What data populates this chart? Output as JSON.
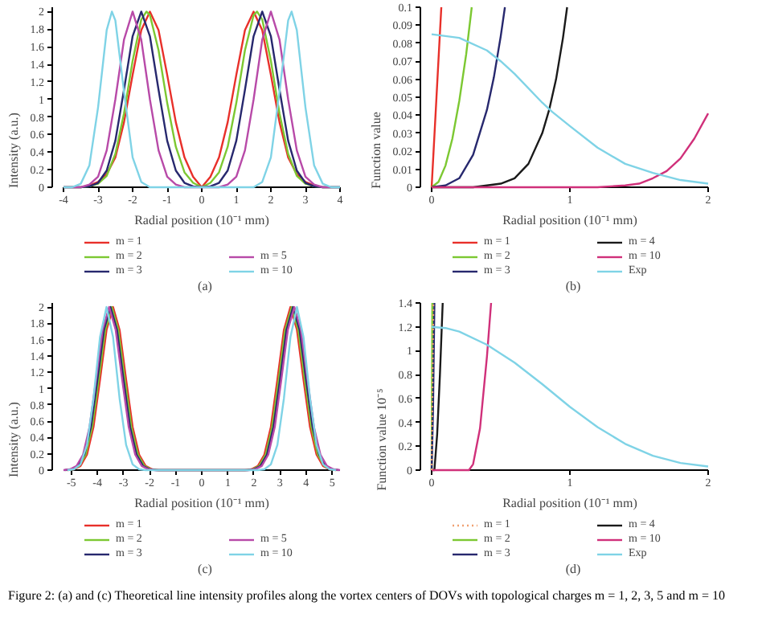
{
  "chart_data": [
    {
      "type": "line",
      "title": "(a)",
      "xlabel": "Radial position (10⁻¹ mm)",
      "ylabel": "Intensity (a.u.)",
      "xlim": [
        -4,
        4
      ],
      "ylim": [
        0,
        2.05
      ],
      "xticks": [
        -4,
        -3,
        -2,
        -1,
        0,
        1,
        2,
        3,
        4
      ],
      "yticks": [
        0,
        0.2,
        0.4,
        0.6,
        0.8,
        1,
        1.2,
        1.4,
        1.6,
        1.8,
        2
      ],
      "legend": "bottom",
      "grid": false,
      "series": [
        {
          "name": "m = 1",
          "color": "#e8302a",
          "x": [
            -3.25,
            -3,
            -2.75,
            -2.5,
            -2.25,
            -2,
            -1.75,
            -1.5,
            -1.25,
            -1,
            -0.75,
            -0.5,
            -0.25,
            0,
            0.25,
            0.5,
            0.75,
            1,
            1.25,
            1.5,
            1.75,
            2,
            2.25,
            2.5,
            2.75,
            3,
            3.25
          ],
          "values": [
            0.02,
            0.06,
            0.15,
            0.34,
            0.74,
            1.28,
            1.79,
            2,
            1.79,
            1.28,
            0.74,
            0.34,
            0.12,
            0,
            0.12,
            0.34,
            0.74,
            1.28,
            1.79,
            2,
            1.79,
            1.28,
            0.74,
            0.34,
            0.15,
            0.06,
            0.02
          ]
        },
        {
          "name": "m = 2",
          "color": "#7cc832",
          "x": [
            -4,
            -3.5,
            -3.25,
            -3,
            -2.75,
            -2.5,
            -2.25,
            -2,
            -1.75,
            -1.6,
            -1.5,
            -1.25,
            -1,
            -0.75,
            -0.5,
            -0.25,
            0,
            0.25,
            0.5,
            0.75,
            1,
            1.25,
            1.5,
            1.6,
            1.75,
            2,
            2.25,
            2.5,
            2.75,
            3,
            3.25,
            3.5,
            4
          ],
          "values": [
            0,
            0,
            0.01,
            0.04,
            0.13,
            0.38,
            0.84,
            1.44,
            1.91,
            2,
            1.96,
            1.56,
            0.96,
            0.46,
            0.17,
            0.05,
            0,
            0.05,
            0.17,
            0.46,
            0.96,
            1.56,
            1.96,
            2,
            1.91,
            1.44,
            0.84,
            0.38,
            0.13,
            0.04,
            0.01,
            0,
            0
          ]
        },
        {
          "name": "m = 3",
          "color": "#27286e",
          "x": [
            -4,
            -3.5,
            -3.25,
            -3,
            -2.75,
            -2.5,
            -2.25,
            -2,
            -1.75,
            -1.5,
            -1.25,
            -1,
            -0.75,
            -0.5,
            -0.25,
            0,
            0.25,
            0.5,
            0.75,
            1,
            1.25,
            1.5,
            1.75,
            2,
            2.25,
            2.5,
            2.75,
            3,
            3.25,
            3.5,
            4
          ],
          "values": [
            0,
            0,
            0.01,
            0.05,
            0.19,
            0.53,
            1.11,
            1.72,
            2,
            1.72,
            1.11,
            0.53,
            0.19,
            0.05,
            0.01,
            0,
            0.01,
            0.05,
            0.19,
            0.53,
            1.11,
            1.72,
            2,
            1.72,
            1.11,
            0.53,
            0.19,
            0.05,
            0.01,
            0,
            0
          ]
        },
        {
          "name": "m = 5",
          "color": "#b84aa8",
          "x": [
            -4,
            -3.5,
            -3.25,
            -3,
            -2.75,
            -2.5,
            -2.25,
            -2,
            -1.75,
            -1.5,
            -1.25,
            -1,
            -0.75,
            -0.5,
            0,
            0.5,
            0.75,
            1,
            1.25,
            1.5,
            1.75,
            2,
            2.25,
            2.5,
            2.75,
            3,
            3.25,
            3.5,
            4
          ],
          "values": [
            0,
            0,
            0.03,
            0.12,
            0.42,
            1.0,
            1.68,
            2,
            1.68,
            1.0,
            0.42,
            0.12,
            0.03,
            0,
            0,
            0,
            0.03,
            0.12,
            0.42,
            1.0,
            1.68,
            2,
            1.68,
            1.0,
            0.42,
            0.12,
            0.03,
            0,
            0
          ]
        },
        {
          "name": "m = 10",
          "color": "#7fd3e6",
          "x": [
            -4,
            -3.75,
            -3.5,
            -3.25,
            -3,
            -2.75,
            -2.6,
            -2.5,
            -2.25,
            -2,
            -1.75,
            -1.5,
            0,
            1.5,
            1.75,
            2,
            2.25,
            2.5,
            2.6,
            2.75,
            3,
            3.25,
            3.5,
            3.75,
            4
          ],
          "values": [
            0,
            0,
            0.04,
            0.25,
            0.91,
            1.79,
            2,
            1.9,
            1.09,
            0.34,
            0.06,
            0,
            0,
            0,
            0.06,
            0.34,
            1.09,
            1.9,
            2,
            1.79,
            0.91,
            0.25,
            0.04,
            0,
            0
          ]
        }
      ]
    },
    {
      "type": "line",
      "title": "(b)",
      "xlabel": "Radial position (10⁻¹ mm)",
      "ylabel": "Function value",
      "xlim": [
        0,
        2
      ],
      "ylim": [
        0,
        0.1
      ],
      "xticks": [
        0,
        1,
        2
      ],
      "yticks": [
        0,
        0.01,
        0.02,
        0.03,
        0.04,
        0.05,
        0.06,
        0.07,
        0.08,
        0.09,
        0.1
      ],
      "legend": "bottom",
      "grid": false,
      "series": [
        {
          "name": "m = 1",
          "color": "#e8302a",
          "x": [
            0,
            0.035,
            0.07
          ],
          "values": [
            0,
            0.05,
            0.1
          ]
        },
        {
          "name": "m = 2",
          "color": "#7cc832",
          "x": [
            0,
            0.05,
            0.1,
            0.15,
            0.2,
            0.25,
            0.29
          ],
          "values": [
            0,
            0.003,
            0.012,
            0.027,
            0.048,
            0.074,
            0.1
          ]
        },
        {
          "name": "m = 3",
          "color": "#27286e",
          "x": [
            0,
            0.1,
            0.2,
            0.3,
            0.4,
            0.45,
            0.5,
            0.53
          ],
          "values": [
            0,
            0.001,
            0.005,
            0.018,
            0.043,
            0.061,
            0.084,
            0.1
          ]
        },
        {
          "name": "m = 4",
          "color": "#1a1a1a",
          "x": [
            0,
            0.3,
            0.5,
            0.6,
            0.7,
            0.8,
            0.85,
            0.9,
            0.95,
            0.98
          ],
          "values": [
            0,
            0,
            0.002,
            0.005,
            0.013,
            0.03,
            0.043,
            0.06,
            0.083,
            0.1
          ]
        },
        {
          "name": "m = 10",
          "color": "#d0307a",
          "x": [
            0,
            1.2,
            1.4,
            1.5,
            1.6,
            1.7,
            1.8,
            1.9,
            2
          ],
          "values": [
            0,
            0,
            0.001,
            0.002,
            0.005,
            0.009,
            0.016,
            0.027,
            0.041
          ]
        },
        {
          "name": "Exp",
          "color": "#7fd3e6",
          "x": [
            0,
            0.2,
            0.4,
            0.5,
            0.6,
            0.8,
            0.87,
            1,
            1.2,
            1.4,
            1.6,
            1.7,
            1.8,
            2
          ],
          "values": [
            0.085,
            0.083,
            0.076,
            0.07,
            0.063,
            0.047,
            0.042,
            0.034,
            0.022,
            0.013,
            0.008,
            0.006,
            0.004,
            0.002
          ]
        }
      ]
    },
    {
      "type": "line",
      "title": "(c)",
      "xlabel": "Radial position (10⁻¹ mm)",
      "ylabel": "Intensity (a.u.)",
      "xlim": [
        -5.3,
        5.3
      ],
      "ylim": [
        0,
        2.05
      ],
      "xticks": [
        -5,
        -4,
        -3,
        -2,
        -1,
        0,
        1,
        2,
        3,
        4,
        5
      ],
      "yticks": [
        0,
        0.2,
        0.4,
        0.6,
        0.8,
        1,
        1.2,
        1.4,
        1.6,
        1.8,
        2
      ],
      "legend": "bottom",
      "grid": false,
      "annotations": [
        "Figure 2: (a) and (c) Theoretical line intensity profiles along the vortex centers of DOVs with topological charges m = 1, 2, 3, 5 and m = 10"
      ],
      "series": [
        {
          "name": "m = 1",
          "color": "#e8302a",
          "x": [
            -5.15,
            -4.9,
            -4.65,
            -4.4,
            -4.15,
            -3.9,
            -3.65,
            -3.4,
            -3.15,
            -2.9,
            -2.65,
            -2.4,
            -2.15,
            -1.9,
            -1.65,
            0,
            1.65,
            1.9,
            2.15,
            2.4,
            2.65,
            2.9,
            3.15,
            3.4,
            3.65,
            3.9,
            4.15,
            4.4,
            4.65,
            4.9,
            5.15
          ],
          "values": [
            0,
            0.01,
            0.05,
            0.19,
            0.53,
            1.11,
            1.72,
            2,
            1.72,
            1.11,
            0.53,
            0.19,
            0.05,
            0.01,
            0,
            0,
            0,
            0.01,
            0.05,
            0.19,
            0.53,
            1.11,
            1.72,
            2,
            1.72,
            1.11,
            0.53,
            0.19,
            0.05,
            0.01,
            0
          ]
        },
        {
          "name": "m = 2",
          "color": "#7cc832",
          "x": [
            -5.2,
            -4.95,
            -4.7,
            -4.45,
            -4.2,
            -3.95,
            -3.7,
            -3.45,
            -3.2,
            -2.95,
            -2.7,
            -2.45,
            -2.2,
            -1.95,
            -1.7,
            0,
            1.7,
            1.95,
            2.2,
            2.45,
            2.7,
            2.95,
            3.2,
            3.45,
            3.7,
            3.95,
            4.2,
            4.45,
            4.7,
            4.95,
            5.2
          ],
          "values": [
            0,
            0.01,
            0.05,
            0.19,
            0.53,
            1.11,
            1.72,
            2,
            1.72,
            1.11,
            0.53,
            0.19,
            0.05,
            0.01,
            0,
            0,
            0,
            0.01,
            0.05,
            0.19,
            0.53,
            1.11,
            1.72,
            2,
            1.72,
            1.11,
            0.53,
            0.19,
            0.05,
            0.01,
            0
          ]
        },
        {
          "name": "m = 3",
          "color": "#27286e",
          "x": [
            -5.25,
            -5,
            -4.75,
            -4.5,
            -4.25,
            -4,
            -3.75,
            -3.5,
            -3.25,
            -3,
            -2.75,
            -2.5,
            -2.25,
            -2,
            -1.75,
            0,
            1.75,
            2,
            2.25,
            2.5,
            2.75,
            3,
            3.25,
            3.5,
            3.75,
            4,
            4.25,
            4.5,
            4.75,
            5,
            5.25
          ],
          "values": [
            0,
            0.01,
            0.05,
            0.19,
            0.53,
            1.11,
            1.72,
            2,
            1.72,
            1.11,
            0.53,
            0.19,
            0.05,
            0.01,
            0,
            0,
            0,
            0.01,
            0.05,
            0.19,
            0.53,
            1.11,
            1.72,
            2,
            1.72,
            1.11,
            0.53,
            0.19,
            0.05,
            0.01,
            0
          ]
        },
        {
          "name": "m = 5",
          "color": "#b84aa8",
          "x": [
            -5.3,
            -5.05,
            -4.8,
            -4.55,
            -4.3,
            -4.05,
            -3.8,
            -3.55,
            -3.3,
            -3.05,
            -2.8,
            -2.55,
            -2.3,
            -2.05,
            -1.8,
            0,
            1.8,
            2.05,
            2.3,
            2.55,
            2.8,
            3.05,
            3.3,
            3.55,
            3.8,
            4.05,
            4.3,
            4.55,
            4.8,
            5.05,
            5.3
          ],
          "values": [
            0,
            0.01,
            0.05,
            0.19,
            0.53,
            1.11,
            1.72,
            2,
            1.72,
            1.11,
            0.53,
            0.19,
            0.05,
            0.01,
            0,
            0,
            0,
            0.01,
            0.05,
            0.19,
            0.53,
            1.11,
            1.72,
            2,
            1.72,
            1.11,
            0.53,
            0.19,
            0.05,
            0.01,
            0
          ]
        },
        {
          "name": "m = 10",
          "color": "#7fd3e6",
          "x": [
            -5.15,
            -4.9,
            -4.65,
            -4.4,
            -4.15,
            -3.9,
            -3.65,
            -3.4,
            -3.15,
            -2.9,
            -2.65,
            -2.4,
            -2.15,
            0,
            2.15,
            2.4,
            2.65,
            2.9,
            3.15,
            3.4,
            3.65,
            3.9,
            4.15,
            4.4,
            4.65,
            4.9,
            5.15
          ],
          "values": [
            0,
            0.01,
            0.07,
            0.31,
            0.88,
            1.63,
            2,
            1.63,
            0.88,
            0.31,
            0.07,
            0.01,
            0,
            0,
            0,
            0.01,
            0.07,
            0.31,
            0.88,
            1.63,
            2,
            1.63,
            0.88,
            0.31,
            0.07,
            0.01,
            0
          ]
        }
      ]
    },
    {
      "type": "line",
      "title": "(d)",
      "xlabel": "Radial position (10⁻¹ mm)",
      "ylabel": "Function value 10⁻⁵",
      "xlim": [
        0,
        2
      ],
      "ylim": [
        0,
        1.4
      ],
      "xticks": [
        0,
        1,
        2
      ],
      "yticks": [
        0,
        0.2,
        0.4,
        0.6,
        0.8,
        1,
        1.2,
        1.4
      ],
      "legend": "bottom",
      "grid": false,
      "series": [
        {
          "name": "m = 1",
          "color": "#f0a070",
          "line_style": "dotted",
          "x": [
            0,
            0.012
          ],
          "values": [
            0,
            1.4
          ]
        },
        {
          "name": "m = 2",
          "color": "#7cc832",
          "x": [
            0,
            0.005
          ],
          "values": [
            0,
            1.4
          ]
        },
        {
          "name": "m = 3",
          "color": "#27286e",
          "x": [
            0,
            0.01,
            0.02
          ],
          "values": [
            0,
            0.5,
            1.4
          ]
        },
        {
          "name": "m = 4",
          "color": "#1a1a1a",
          "x": [
            0,
            0.02,
            0.04,
            0.06,
            0.08
          ],
          "values": [
            0,
            0,
            0.3,
            0.8,
            1.4
          ]
        },
        {
          "name": "m = 10",
          "color": "#d0307a",
          "x": [
            0,
            0.27,
            0.3,
            0.35,
            0.4,
            0.43
          ],
          "values": [
            0,
            0,
            0.05,
            0.35,
            0.95,
            1.4
          ]
        },
        {
          "name": "Exp",
          "color": "#7fd3e6",
          "x": [
            0,
            0.1,
            0.2,
            0.4,
            0.6,
            0.8,
            1,
            1.2,
            1.4,
            1.6,
            1.8,
            2
          ],
          "values": [
            1.2,
            1.19,
            1.16,
            1.05,
            0.9,
            0.72,
            0.53,
            0.36,
            0.22,
            0.12,
            0.06,
            0.03
          ]
        }
      ]
    }
  ]
}
